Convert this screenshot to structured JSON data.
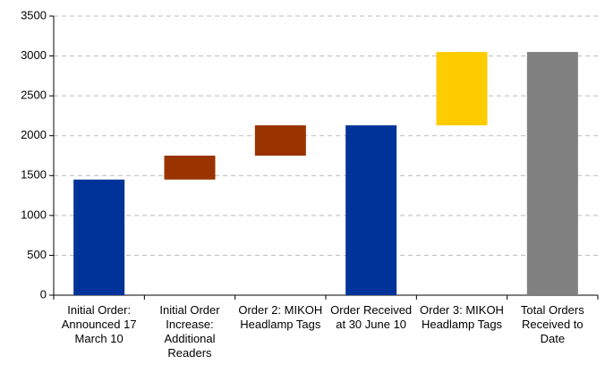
{
  "chart_data": {
    "type": "waterfall",
    "categories": [
      "Initial Order: Announced 17 March 10",
      "Initial Order Increase: Additional Readers",
      "Order 2: MIKOH Headlamp Tags",
      "Order Received at 30 June 10",
      "Order 3: MIKOH Headlamp Tags",
      "Total Orders Received to Date"
    ],
    "values": [
      1450,
      300,
      380,
      2130,
      920,
      3050
    ],
    "subtotal": [
      true,
      false,
      false,
      true,
      false,
      true
    ],
    "colors": [
      "#003399",
      "#993300",
      "#993300",
      "#003399",
      "#ffcc00",
      "#808080"
    ],
    "ylim": [
      0,
      3500
    ],
    "yticks": [
      0,
      500,
      1000,
      1500,
      2000,
      2500,
      3000,
      3500
    ],
    "grid": true
  }
}
